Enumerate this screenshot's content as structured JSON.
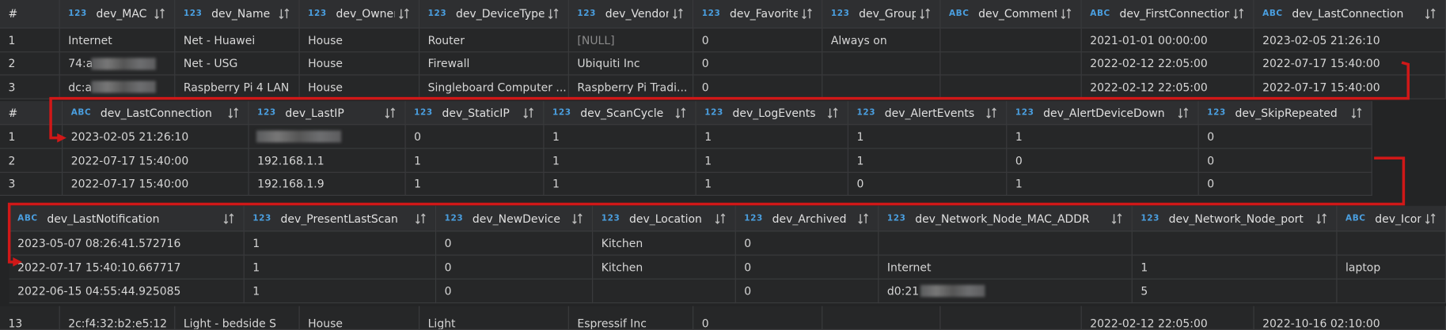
{
  "tables": [
    {
      "index_header": "#",
      "columns": [
        {
          "type": "123",
          "name": "dev_MAC"
        },
        {
          "type": "123",
          "name": "dev_Name"
        },
        {
          "type": "123",
          "name": "dev_Owner"
        },
        {
          "type": "123",
          "name": "dev_DeviceType"
        },
        {
          "type": "123",
          "name": "dev_Vendor"
        },
        {
          "type": "123",
          "name": "dev_Favorite"
        },
        {
          "type": "123",
          "name": "dev_Group"
        },
        {
          "type": "ABC",
          "name": "dev_Comments"
        },
        {
          "type": "ABC",
          "name": "dev_FirstConnection"
        },
        {
          "type": "ABC",
          "name": "dev_LastConnection"
        }
      ],
      "rows": [
        [
          "1",
          "Internet",
          "Net - Huawei",
          "House",
          "Router",
          "[NULL]",
          "0",
          "Always on",
          null,
          "2021-01-01 00:00:00",
          "2023-02-05 21:26:10"
        ],
        [
          "2",
          "74:a",
          "Net - USG",
          "House",
          "Firewall",
          "Ubiquiti Inc",
          "0",
          null,
          null,
          "2022-02-12 22:05:00",
          "2022-07-17 15:40:00"
        ],
        [
          "3",
          "dc:a",
          "Raspberry Pi 4 LAN",
          "House",
          "Singleboard Computer ...",
          "Raspberry Pi Tradi...",
          "0",
          null,
          null,
          "2022-02-12 22:05:00",
          "2022-07-17 15:40:00"
        ]
      ],
      "partial_row": [
        "13",
        "2c:f4:32:b2:e5:12",
        "Light - bedside S",
        "House",
        "Light",
        "Espressif Inc",
        "0",
        null,
        null,
        "2022-02-12 22:05:00",
        "2022-10-16 02:10:00"
      ]
    },
    {
      "index_header": "#",
      "columns": [
        {
          "type": "ABC",
          "name": "dev_LastConnection"
        },
        {
          "type": "123",
          "name": "dev_LastIP"
        },
        {
          "type": "123",
          "name": "dev_StaticIP"
        },
        {
          "type": "123",
          "name": "dev_ScanCycle"
        },
        {
          "type": "123",
          "name": "dev_LogEvents"
        },
        {
          "type": "123",
          "name": "dev_AlertEvents"
        },
        {
          "type": "123",
          "name": "dev_AlertDeviceDown"
        },
        {
          "type": "123",
          "name": "dev_SkipRepeated"
        }
      ],
      "rows": [
        [
          "1",
          "2023-02-05 21:26:10",
          null,
          "0",
          "1",
          "1",
          "1",
          "1",
          "0"
        ],
        [
          "2",
          "2022-07-17 15:40:00",
          "192.168.1.1",
          "1",
          "1",
          "1",
          "1",
          "0",
          "0"
        ],
        [
          "3",
          "2022-07-17 15:40:00",
          "192.168.1.9",
          "1",
          "1",
          "1",
          "0",
          "1",
          "0"
        ]
      ]
    },
    {
      "columns": [
        {
          "type": "ABC",
          "name": "dev_LastNotification"
        },
        {
          "type": "123",
          "name": "dev_PresentLastScan"
        },
        {
          "type": "123",
          "name": "dev_NewDevice"
        },
        {
          "type": "123",
          "name": "dev_Location"
        },
        {
          "type": "123",
          "name": "dev_Archived"
        },
        {
          "type": "123",
          "name": "dev_Network_Node_MAC_ADDR"
        },
        {
          "type": "123",
          "name": "dev_Network_Node_port"
        },
        {
          "type": "ABC",
          "name": "dev_Icon"
        }
      ],
      "rows": [
        [
          "2023-05-07 08:26:41.572716",
          "1",
          "0",
          "Kitchen",
          "0",
          null,
          null,
          null
        ],
        [
          "2022-07-17 15:40:10.667717",
          "1",
          "0",
          "Kitchen",
          "0",
          "Internet",
          "1",
          "laptop"
        ],
        [
          "2022-06-15 04:55:44.925085",
          "1",
          "0",
          null,
          "0",
          "d0:21",
          "5",
          null
        ]
      ]
    }
  ]
}
